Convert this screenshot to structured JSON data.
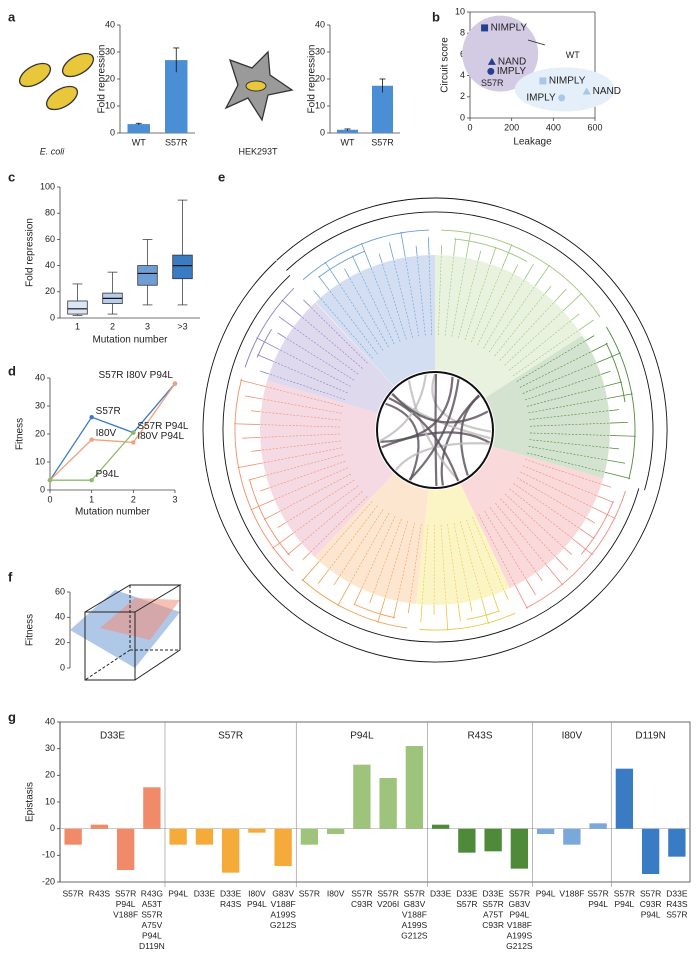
{
  "chart_data": [
    {
      "type": "bar",
      "panel": "a",
      "annotation": "E. coli",
      "ylabel": "Fold repression",
      "categories": [
        "WT",
        "S57R"
      ],
      "values": [
        3.3,
        27
      ],
      "errors": [
        0.3,
        4.5
      ],
      "color": "#4a8fd6",
      "ylim": [
        0,
        40
      ],
      "yticks": [
        0,
        10,
        20,
        30,
        40
      ]
    },
    {
      "type": "bar",
      "annotation": "HEK293T",
      "ylabel": "Fold repression",
      "categories": [
        "WT",
        "S57R"
      ],
      "values": [
        1.2,
        17.5
      ],
      "errors": [
        0.3,
        2.5
      ],
      "color": "#4a8fd6",
      "ylim": [
        0,
        40
      ],
      "yticks": [
        0,
        10,
        20,
        30,
        40
      ]
    },
    {
      "type": "scatter",
      "panel": "b",
      "xlabel": "Leakage",
      "ylabel": "Circuit score",
      "xlim": [
        0,
        600
      ],
      "xticks": [
        0,
        200,
        400,
        600
      ],
      "ylim": [
        0,
        10
      ],
      "yticks": [
        0,
        2,
        4,
        6,
        8,
        10
      ],
      "series": [
        {
          "name": "S57R",
          "color": "#24408e",
          "region_color": "#d3cbe4",
          "labels": [
            "NIMPLY",
            "NAND",
            "IMPLY"
          ],
          "markers": [
            "square",
            "triangle",
            "circle"
          ],
          "x": [
            70,
            105,
            100
          ],
          "values": [
            8.5,
            5.3,
            4.4
          ]
        },
        {
          "name": "WT",
          "color": "#a9c7e8",
          "region_color": "#e4eff9",
          "labels": [
            "NIMPLY",
            "NAND",
            "IMPLY"
          ],
          "markers": [
            "square",
            "triangle",
            "circle"
          ],
          "x": [
            350,
            560,
            440
          ],
          "values": [
            3.5,
            2.5,
            1.9
          ]
        }
      ]
    },
    {
      "type": "box",
      "panel": "c",
      "xlabel": "Mutation number",
      "ylabel": "Fold repression",
      "categories": [
        "1",
        "2",
        "3",
        ">3"
      ],
      "min": [
        2,
        3,
        10,
        10
      ],
      "q1": [
        3,
        11,
        25,
        30
      ],
      "median": [
        7,
        15,
        34,
        40
      ],
      "q3": [
        13,
        19,
        40,
        48
      ],
      "max": [
        26,
        35,
        60,
        90
      ],
      "colors": [
        "#dbe6f5",
        "#b7cdea",
        "#6f9ed4",
        "#3a7cc4"
      ],
      "ylim": [
        0,
        100
      ],
      "yticks": [
        0,
        20,
        40,
        60,
        80,
        100
      ]
    },
    {
      "type": "line",
      "panel": "d",
      "xlabel": "Mutation number",
      "ylabel": "Fitness",
      "x": [
        0,
        1,
        2,
        3
      ],
      "xlim": [
        0,
        3
      ],
      "xticks": [
        0,
        1,
        2,
        3
      ],
      "ylim": [
        0,
        40
      ],
      "yticks": [
        0,
        10,
        20,
        30,
        40
      ],
      "series": [
        {
          "color": "#3a7cc4",
          "values": [
            3.5,
            26,
            20.5,
            38
          ],
          "point_labels": [
            null,
            "S57R",
            "S57R P94L",
            "S57R I80V P94L"
          ]
        },
        {
          "color": "#f3a07a",
          "values": [
            3.5,
            18,
            17,
            38
          ],
          "point_labels": [
            null,
            "I80V",
            "I80V P94L",
            null
          ]
        },
        {
          "color": "#8dbb6a",
          "values": [
            3.5,
            3.5,
            20.5,
            null
          ],
          "point_labels": [
            null,
            "P94L",
            null,
            null
          ]
        }
      ]
    },
    {
      "type": "surface3d",
      "panel": "f",
      "ylabel": "Fitness",
      "ylim": [
        0,
        60
      ],
      "yticks": [
        0,
        20,
        40,
        60
      ]
    },
    {
      "type": "tree",
      "panel": "e"
    },
    {
      "type": "grouped_bar",
      "panel": "g",
      "ylabel": "Epistasis",
      "ylim": [
        -20,
        40
      ],
      "yticks": [
        -20,
        -10,
        0,
        10,
        20,
        30,
        40
      ],
      "groups": [
        {
          "name": "D33E",
          "color": "#f08a68",
          "categories": [
            [
              "S57R"
            ],
            [
              "R43S"
            ],
            [
              "S57R",
              "P94L",
              "V188F"
            ],
            [
              "R43G",
              "A53T",
              "S57R",
              "A75V",
              "P94L",
              "D119N"
            ]
          ],
          "values": [
            -6,
            1.5,
            -15.5,
            15.5
          ]
        },
        {
          "name": "S57R",
          "color": "#f5ab3a",
          "categories": [
            [
              "P94L"
            ],
            [
              "D33E"
            ],
            [
              "D33E",
              "R43S"
            ],
            [
              "I80V",
              "P94L"
            ],
            [
              "G83V",
              "V188F",
              "A199S",
              "G212S"
            ]
          ],
          "values": [
            -6,
            -6,
            -16.5,
            -1.5,
            -14
          ]
        },
        {
          "name": "P94L",
          "color": "#9dc47a",
          "categories": [
            [
              "S57R"
            ],
            [
              "I80V"
            ],
            [
              "S57R",
              "C93R"
            ],
            [
              "S57R",
              "V206I"
            ],
            [
              "S57R",
              "G83V",
              "V188F",
              "A199S",
              "G212S"
            ]
          ],
          "values": [
            -6,
            -2,
            24,
            19,
            31
          ]
        },
        {
          "name": "R43S",
          "color": "#4e8a3a",
          "categories": [
            [
              "D33E"
            ],
            [
              "D33E",
              "S57R"
            ],
            [
              "D33E",
              "S57R",
              "A75T",
              "C93R"
            ],
            [
              "S57R",
              "G83V",
              "P94L",
              "V188F",
              "A199S",
              "G212S"
            ]
          ],
          "values": [
            1.5,
            -9,
            -8.5,
            -15
          ]
        },
        {
          "name": "I80V",
          "color": "#7aa8d8",
          "categories": [
            [
              "P94L"
            ],
            [
              "V188F"
            ],
            [
              "S57R",
              "P94L"
            ]
          ],
          "values": [
            -2,
            -6,
            2
          ]
        },
        {
          "name": "D119N",
          "color": "#3a7cc4",
          "categories": [
            [
              "S57R",
              "P94L"
            ],
            [
              "S57R",
              "C93R",
              "P94L"
            ],
            [
              "D33E",
              "R43S",
              "S57R"
            ]
          ],
          "values": [
            22.5,
            -17,
            -10.5
          ]
        }
      ]
    }
  ]
}
